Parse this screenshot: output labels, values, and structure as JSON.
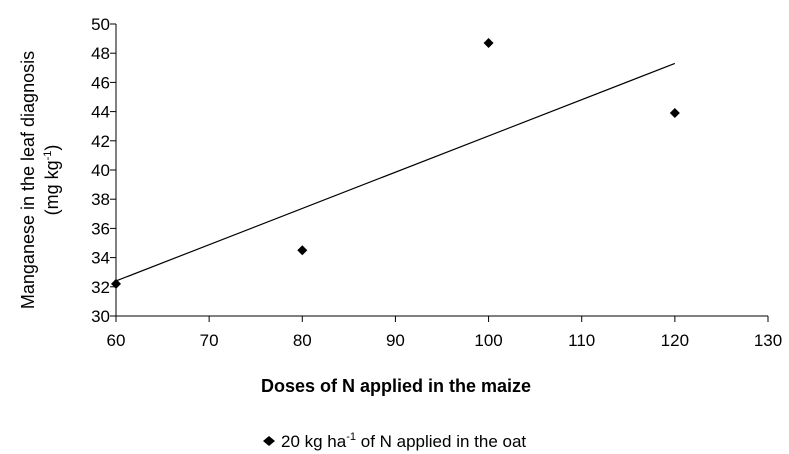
{
  "chart_data": {
    "type": "scatter",
    "xlabel": "Doses of N applied in the maize",
    "ylabel": {
      "line1": "Manganese in the leaf diagnosis",
      "line2_prefix": "(mg kg",
      "line2_sup": "-1",
      "line2_suffix": ")"
    },
    "xlim": [
      60,
      130
    ],
    "ylim": [
      30,
      50
    ],
    "xticks": [
      60,
      70,
      80,
      90,
      100,
      110,
      120,
      130
    ],
    "yticks": [
      30,
      32,
      34,
      36,
      38,
      40,
      42,
      44,
      46,
      48,
      50
    ],
    "grid": false,
    "legend_position": "bottom-center",
    "series": [
      {
        "name": "20 kg ha-1 of N applied in the oat",
        "legend": {
          "prefix": "20 kg ha",
          "sup": "-1",
          "suffix": " of N applied in the oat"
        },
        "marker": "diamond",
        "color": "#000000",
        "points": [
          {
            "x": 60,
            "y": 32.2
          },
          {
            "x": 80,
            "y": 34.5
          },
          {
            "x": 100,
            "y": 48.7
          },
          {
            "x": 120,
            "y": 43.9
          }
        ]
      }
    ],
    "trendline": {
      "type": "linear",
      "color": "#000000",
      "x_start": 60,
      "x_end": 120,
      "y_start": 32.4,
      "y_end": 47.3
    }
  }
}
